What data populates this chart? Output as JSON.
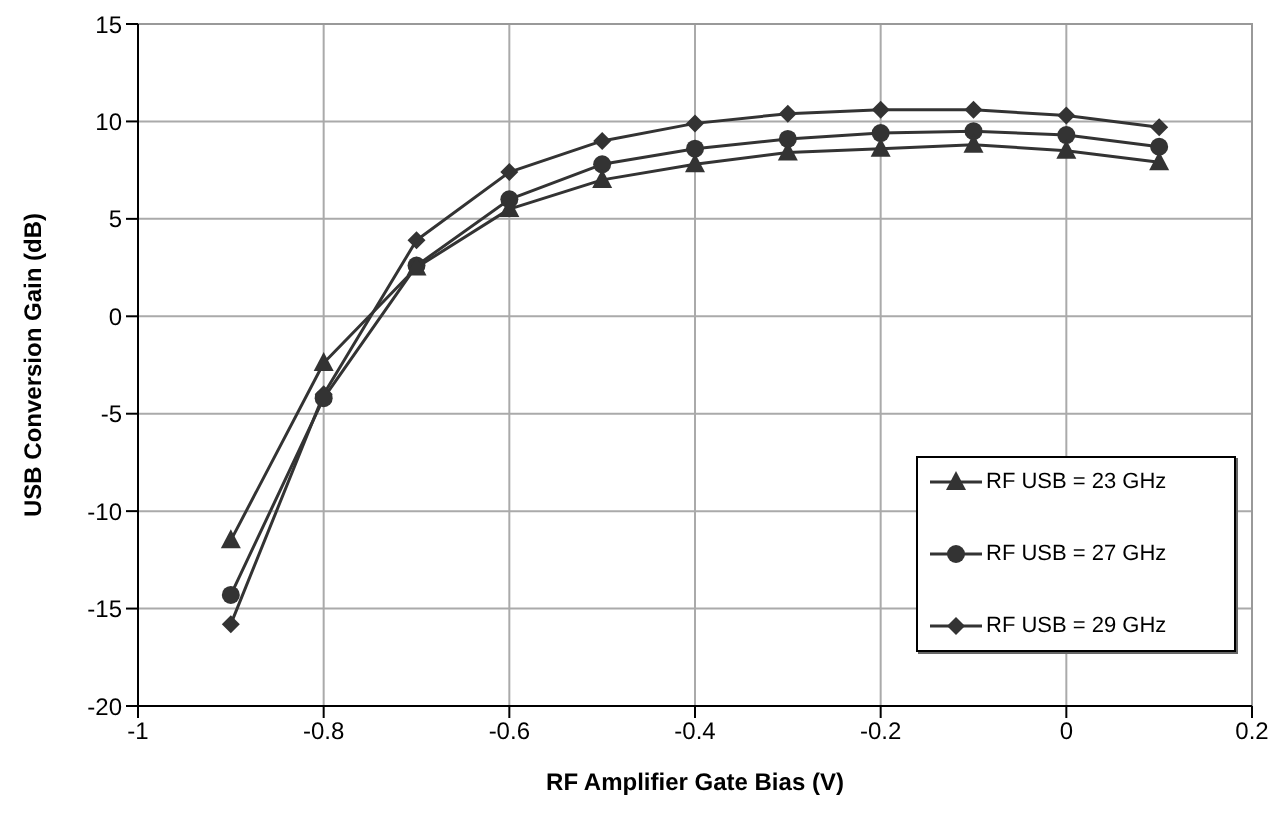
{
  "chart_data": {
    "type": "line",
    "xlabel": "RF Amplifier Gate Bias (V)",
    "ylabel": "USB Conversion Gain (dB)",
    "x": [
      -0.9,
      -0.8,
      -0.7,
      -0.6,
      -0.5,
      -0.4,
      -0.3,
      -0.2,
      -0.1,
      0,
      0.1
    ],
    "series": [
      {
        "name": "RF USB = 23 GHz",
        "color": "#333333",
        "marker": "triangle",
        "values": [
          -11.5,
          -2.4,
          2.5,
          5.5,
          7.0,
          7.8,
          8.4,
          8.6,
          8.8,
          8.5,
          7.9
        ]
      },
      {
        "name": "RF USB = 27 GHz",
        "color": "#333333",
        "marker": "circle",
        "values": [
          -14.3,
          -4.2,
          2.6,
          6.0,
          7.8,
          8.6,
          9.1,
          9.4,
          9.5,
          9.3,
          8.7
        ]
      },
      {
        "name": "RF USB = 29 GHz",
        "color": "#333333",
        "marker": "diamond",
        "values": [
          -15.8,
          -4.0,
          3.9,
          7.4,
          9.0,
          9.9,
          10.4,
          10.6,
          10.6,
          10.3,
          9.7
        ]
      }
    ],
    "xlim": [
      -1,
      0.2
    ],
    "xticks": [
      -1,
      -0.8,
      -0.6,
      -0.4,
      -0.2,
      0,
      0.2
    ],
    "ylim": [
      -20,
      15
    ],
    "yticks": [
      -20,
      -15,
      -10,
      -5,
      0,
      5,
      10,
      15
    ],
    "grid": true,
    "legend": "bottom right",
    "line_style": "solid"
  }
}
